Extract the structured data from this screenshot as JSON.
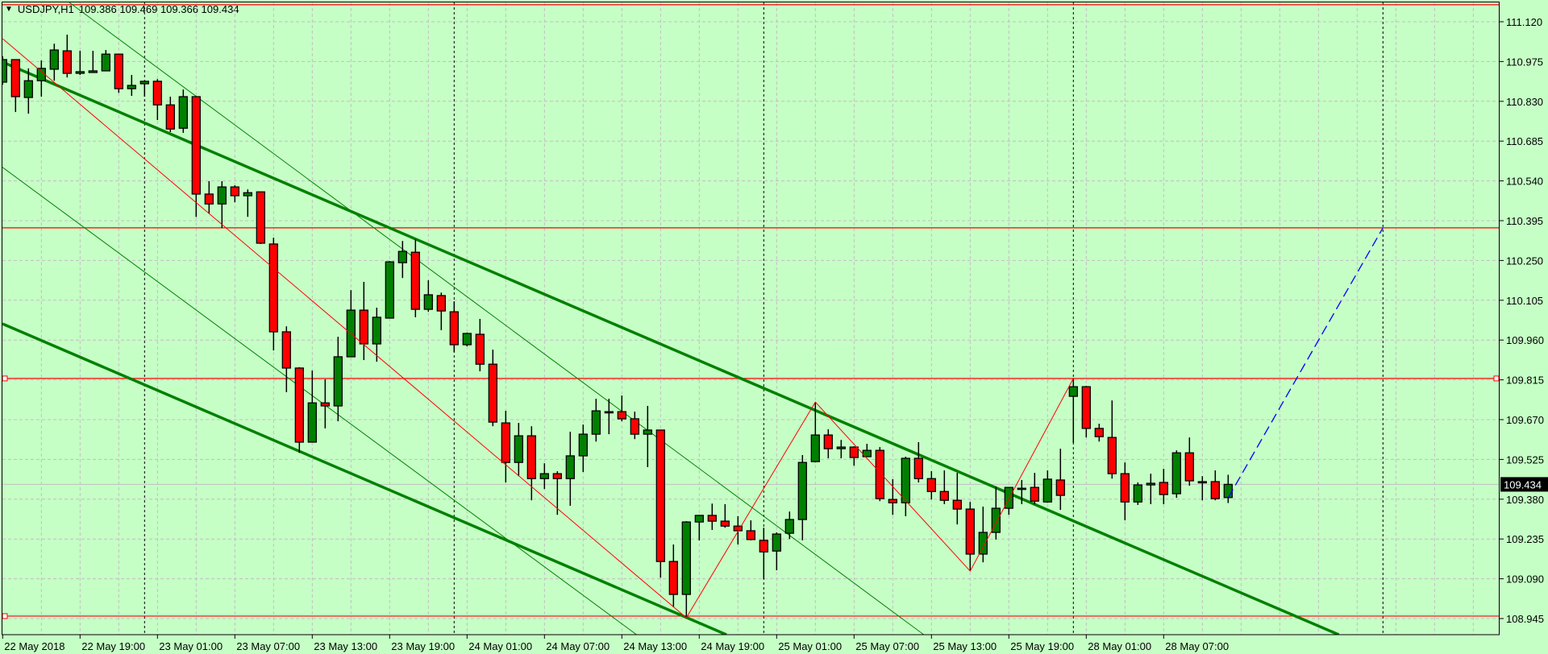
{
  "header": {
    "menu_icon": "triangle-down-icon",
    "symbol": "USDJPY,H1",
    "ohlc": "109.386 109.469 109.366 109.434"
  },
  "colors": {
    "background": "#c6ffc6",
    "grid": "#c4bcc4",
    "bull": "#008000",
    "bear": "#ff0000",
    "outline": "#000000",
    "trendline": "#008000",
    "zigzag": "#ff0000",
    "projection": "#0000ff",
    "level": "#ff0000",
    "bid_line": "#c0c0c0"
  },
  "chart_data": {
    "type": "candlestick",
    "symbol": "USDJPY",
    "timeframe": "H1",
    "ylim": [
      108.9,
      111.18
    ],
    "grid": true,
    "price_ticks": [
      "111.120",
      "110.975",
      "110.830",
      "110.685",
      "110.540",
      "110.395",
      "110.250",
      "110.105",
      "109.960",
      "109.815",
      "109.670",
      "109.525",
      "109.380",
      "109.235",
      "109.090",
      "108.945"
    ],
    "time_labels": [
      "22 May 2018",
      "22 May 19:00",
      "23 May 01:00",
      "23 May 07:00",
      "23 May 13:00",
      "23 May 19:00",
      "24 May 01:00",
      "24 May 07:00",
      "24 May 13:00",
      "24 May 19:00",
      "25 May 01:00",
      "25 May 07:00",
      "25 May 13:00",
      "25 May 19:00",
      "28 May 01:00",
      "28 May 07:00"
    ],
    "current_price": "109.434",
    "candles_ohlc": [
      [
        110.9,
        110.994,
        110.891,
        110.982
      ],
      [
        110.982,
        110.982,
        110.791,
        110.847
      ],
      [
        110.844,
        110.95,
        110.785,
        110.905
      ],
      [
        110.905,
        110.979,
        110.847,
        110.95
      ],
      [
        110.947,
        111.04,
        110.905,
        111.017
      ],
      [
        111.014,
        111.073,
        110.917,
        110.932
      ],
      [
        110.932,
        111.014,
        110.926,
        110.938
      ],
      [
        110.935,
        111.014,
        110.935,
        110.941
      ],
      [
        110.941,
        111.017,
        110.941,
        111.002
      ],
      [
        111.002,
        111.002,
        110.861,
        110.876
      ],
      [
        110.876,
        110.926,
        110.85,
        110.888
      ],
      [
        110.894,
        110.903,
        110.847,
        110.903
      ],
      [
        110.903,
        110.911,
        110.762,
        110.817
      ],
      [
        110.817,
        110.847,
        110.718,
        110.729
      ],
      [
        110.732,
        110.873,
        110.715,
        110.847
      ],
      [
        110.847,
        110.847,
        110.409,
        110.492
      ],
      [
        110.492,
        110.539,
        110.421,
        110.456
      ],
      [
        110.456,
        110.539,
        110.368,
        110.518
      ],
      [
        110.518,
        110.524,
        110.462,
        110.486
      ],
      [
        110.486,
        110.509,
        110.409,
        110.497
      ],
      [
        110.5,
        110.5,
        110.31,
        110.313
      ],
      [
        110.31,
        110.333,
        109.922,
        109.99
      ],
      [
        109.99,
        110.01,
        109.77,
        109.858
      ],
      [
        109.858,
        109.861,
        109.549,
        109.588
      ],
      [
        109.588,
        109.849,
        109.588,
        109.731
      ],
      [
        109.731,
        109.817,
        109.638,
        109.72
      ],
      [
        109.72,
        109.972,
        109.664,
        109.899
      ],
      [
        109.899,
        110.142,
        109.899,
        110.069
      ],
      [
        110.069,
        110.172,
        109.887,
        109.946
      ],
      [
        109.946,
        110.078,
        109.881,
        110.043
      ],
      [
        110.04,
        110.248,
        110.04,
        110.245
      ],
      [
        110.242,
        110.321,
        110.186,
        110.283
      ],
      [
        110.28,
        110.327,
        110.043,
        110.072
      ],
      [
        110.072,
        110.178,
        110.063,
        110.125
      ],
      [
        110.122,
        110.133,
        109.996,
        110.066
      ],
      [
        110.063,
        110.101,
        109.916,
        109.943
      ],
      [
        109.943,
        109.987,
        109.937,
        109.984
      ],
      [
        109.981,
        110.037,
        109.846,
        109.872
      ],
      [
        109.872,
        109.925,
        109.646,
        109.661
      ],
      [
        109.658,
        109.702,
        109.441,
        109.514
      ],
      [
        109.514,
        109.658,
        109.464,
        109.611
      ],
      [
        109.611,
        109.646,
        109.376,
        109.455
      ],
      [
        109.455,
        109.511,
        109.417,
        109.473
      ],
      [
        109.473,
        109.482,
        109.323,
        109.455
      ],
      [
        109.455,
        109.626,
        109.356,
        109.538
      ],
      [
        109.538,
        109.652,
        109.479,
        109.617
      ],
      [
        109.617,
        109.746,
        109.59,
        109.702
      ],
      [
        109.699,
        109.746,
        109.617,
        109.699
      ],
      [
        109.699,
        109.758,
        109.664,
        109.673
      ],
      [
        109.673,
        109.699,
        109.599,
        109.617
      ],
      [
        109.617,
        109.72,
        109.497,
        109.632
      ],
      [
        109.632,
        109.632,
        109.094,
        109.153
      ],
      [
        109.153,
        109.215,
        108.986,
        109.033
      ],
      [
        109.033,
        109.3,
        108.948,
        109.297
      ],
      [
        109.297,
        109.323,
        109.23,
        109.321
      ],
      [
        109.321,
        109.364,
        109.268,
        109.3
      ],
      [
        109.3,
        109.362,
        109.276,
        109.282
      ],
      [
        109.282,
        109.318,
        109.215,
        109.265
      ],
      [
        109.265,
        109.303,
        109.23,
        109.233
      ],
      [
        109.23,
        109.276,
        109.089,
        109.188
      ],
      [
        109.191,
        109.259,
        109.121,
        109.253
      ],
      [
        109.256,
        109.335,
        109.235,
        109.306
      ],
      [
        109.306,
        109.541,
        109.23,
        109.514
      ],
      [
        109.517,
        109.734,
        109.514,
        109.614
      ],
      [
        109.614,
        109.635,
        109.529,
        109.564
      ],
      [
        109.564,
        109.596,
        109.529,
        109.57
      ],
      [
        109.57,
        109.573,
        109.502,
        109.532
      ],
      [
        109.535,
        109.582,
        109.535,
        109.558
      ],
      [
        109.558,
        109.57,
        109.373,
        109.382
      ],
      [
        109.379,
        109.453,
        109.323,
        109.367
      ],
      [
        109.367,
        109.535,
        109.318,
        109.529
      ],
      [
        109.529,
        109.588,
        109.441,
        109.455
      ],
      [
        109.455,
        109.482,
        109.379,
        109.408
      ],
      [
        109.408,
        109.485,
        109.362,
        109.376
      ],
      [
        109.376,
        109.476,
        109.288,
        109.344
      ],
      [
        109.344,
        109.37,
        109.118,
        109.18
      ],
      [
        109.18,
        109.353,
        109.15,
        109.259
      ],
      [
        109.259,
        109.426,
        109.233,
        109.347
      ],
      [
        109.347,
        109.423,
        109.323,
        109.423
      ],
      [
        109.42,
        109.45,
        109.362,
        109.42
      ],
      [
        109.423,
        109.476,
        109.362,
        109.373
      ],
      [
        109.37,
        109.485,
        109.367,
        109.453
      ],
      [
        109.45,
        109.564,
        109.341,
        109.394
      ],
      [
        109.755,
        109.82,
        109.585,
        109.79
      ],
      [
        109.79,
        109.793,
        109.605,
        109.638
      ],
      [
        109.638,
        109.655,
        109.59,
        109.608
      ],
      [
        109.605,
        109.74,
        109.455,
        109.473
      ],
      [
        109.473,
        109.514,
        109.303,
        109.37
      ],
      [
        109.37,
        109.441,
        109.359,
        109.432
      ],
      [
        109.432,
        109.473,
        109.362,
        109.438
      ],
      [
        109.441,
        109.491,
        109.362,
        109.397
      ],
      [
        109.4,
        109.558,
        109.385,
        109.549
      ],
      [
        109.549,
        109.605,
        109.429,
        109.447
      ],
      [
        109.444,
        109.464,
        109.376,
        109.444
      ],
      [
        109.444,
        109.485,
        109.376,
        109.382
      ],
      [
        109.386,
        109.469,
        109.366,
        109.434
      ]
    ],
    "horizontal_levels": [
      {
        "price": 111.182,
        "color": "#ff0000"
      },
      {
        "price": 110.369,
        "color": "#ff0000"
      },
      {
        "price": 109.82,
        "color": "#ff0000",
        "marker_left": true,
        "marker_right": true
      },
      {
        "price": 108.954,
        "color": "#ff0000",
        "marker_left": true
      }
    ],
    "trendlines": [
      {
        "name": "upper-channel",
        "color": "#008000",
        "weight": "thick",
        "p1": {
          "bar": 0,
          "price": 110.973
        },
        "p2": {
          "bar": 95,
          "price": 109.059
        }
      },
      {
        "name": "lower-channel",
        "color": "#008000",
        "weight": "thick",
        "p1": {
          "bar": 0,
          "price": 110.019
        },
        "p2": {
          "bar": 53,
          "price": 108.949
        }
      },
      {
        "name": "thin-channel-1",
        "color": "#008000",
        "weight": "thin",
        "p1": {
          "bar": 0,
          "price": 111.37
        },
        "p2": {
          "bar": 60,
          "price": 109.283
        }
      },
      {
        "name": "thin-channel-2",
        "color": "#008000",
        "weight": "thin",
        "p1": {
          "bar": 0,
          "price": 110.589
        },
        "p2": {
          "bar": 40,
          "price": 109.203
        }
      }
    ],
    "zigzag": [
      {
        "bar": 0,
        "price": 111.058
      },
      {
        "bar": 53,
        "price": 108.948
      },
      {
        "bar": 63,
        "price": 109.734
      },
      {
        "bar": 75,
        "price": 109.118
      },
      {
        "bar": 83,
        "price": 109.82
      }
    ],
    "projection": {
      "color": "#0000ff",
      "style": "dashed",
      "p1": {
        "bar": 95,
        "price": 109.385
      },
      "p2": {
        "bar": 107,
        "price": 110.369
      }
    },
    "period_separator_bars": [
      11,
      35,
      59,
      83,
      107
    ]
  }
}
